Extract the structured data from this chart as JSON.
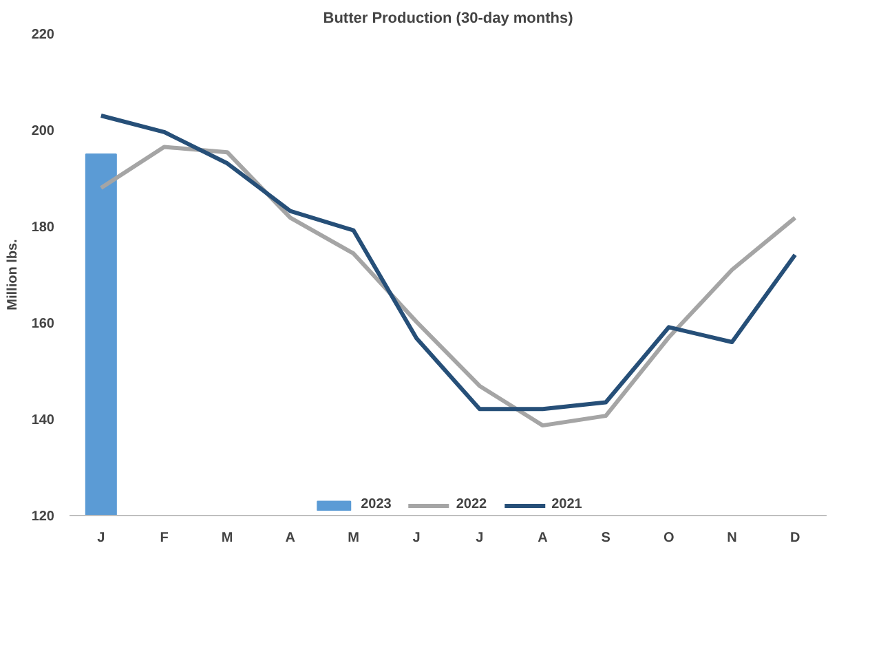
{
  "chart_data": {
    "type": "line",
    "title": "Butter Production (30-day months)",
    "ylabel": "Million lbs.",
    "categories": [
      "J",
      "F",
      "M",
      "A",
      "M",
      "J",
      "J",
      "A",
      "S",
      "O",
      "N",
      "D"
    ],
    "ylim": [
      120,
      220
    ],
    "yticks": [
      120,
      140,
      160,
      180,
      200,
      220
    ],
    "grid": false,
    "legend": "bottom",
    "series": [
      {
        "name": "2023",
        "type": "bar",
        "color": "#5b9bd5",
        "values": [
          195,
          null,
          null,
          null,
          null,
          null,
          null,
          null,
          null,
          null,
          null,
          null
        ]
      },
      {
        "name": "2022",
        "color": "#a5a5a5",
        "values": [
          188,
          196.5,
          195.4,
          181.8,
          174.4,
          160.2,
          146.9,
          138.7,
          140.7,
          157,
          171,
          181.8
        ]
      },
      {
        "name": "2021",
        "color": "#264f78",
        "values": [
          203,
          199.6,
          193.1,
          183.2,
          179.2,
          156.8,
          142.1,
          142.1,
          143.5,
          159.1,
          156,
          174.1
        ]
      }
    ]
  }
}
